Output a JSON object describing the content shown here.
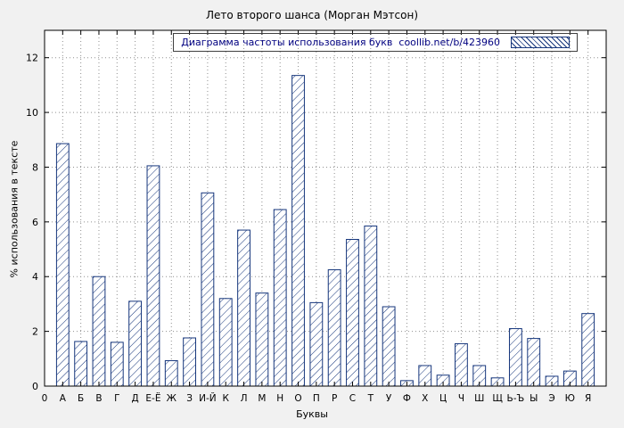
{
  "chart_data": {
    "type": "bar",
    "title": "Лето второго шанса (Морган Мэтсон)",
    "legend": "Диаграмма частоты использования букв  coollib.net/b/423960",
    "xlabel": "Буквы",
    "ylabel": "% использования в тексте",
    "origin_label": "0",
    "ylim": [
      0,
      13
    ],
    "yticks": [
      0,
      2,
      4,
      6,
      8,
      10,
      12
    ],
    "grid": true,
    "legend_position": "top-right",
    "bar_color": "#16367c",
    "bar_fill": "diagonal-hatch",
    "categories": [
      "А",
      "Б",
      "В",
      "Г",
      "Д",
      "Е-Ё",
      "Ж",
      "З",
      "И-Й",
      "К",
      "Л",
      "М",
      "Н",
      "О",
      "П",
      "Р",
      "С",
      "Т",
      "У",
      "Ф",
      "Х",
      "Ц",
      "Ч",
      "Ш",
      "Щ",
      "Ь-Ъ",
      "Ы",
      "Э",
      "Ю",
      "Я"
    ],
    "values": [
      8.86,
      1.63,
      4.0,
      1.6,
      3.1,
      8.05,
      0.93,
      1.76,
      7.06,
      3.2,
      5.7,
      3.4,
      6.45,
      11.35,
      3.05,
      4.25,
      5.36,
      5.85,
      2.9,
      0.2,
      0.75,
      0.4,
      1.55,
      0.75,
      0.3,
      2.1,
      1.74,
      0.36,
      0.55,
      2.65
    ]
  },
  "colors": {
    "page_background": "#f1f1f1",
    "plot_background": "#ffffff",
    "bar_border": "#16367c",
    "grid": "#909090",
    "axis": "#000000",
    "legend_text": "#000080",
    "title_text": "#000000"
  }
}
